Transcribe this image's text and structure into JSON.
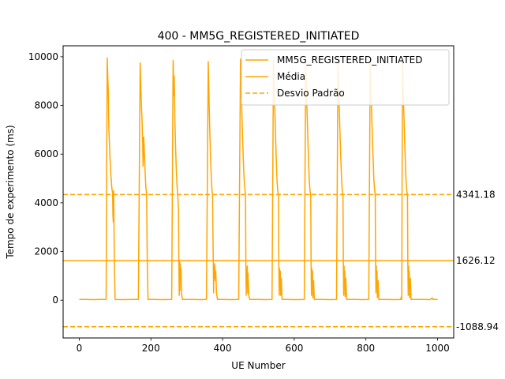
{
  "chart_data": {
    "type": "line",
    "title": "400 - MM5G_REGISTERED_INITIATED",
    "xlabel": "UE Number",
    "ylabel": "Tempo de experimento (ms)",
    "xlim": [
      -45,
      1045
    ],
    "ylim": [
      -1550,
      10450
    ],
    "xticks": [
      0,
      200,
      400,
      600,
      800,
      1000
    ],
    "yticks": [
      0,
      2000,
      4000,
      6000,
      8000,
      10000
    ],
    "xtick_labels": [
      "0",
      "200",
      "400",
      "600",
      "800",
      "1000"
    ],
    "ytick_labels": [
      "0",
      "2000",
      "4000",
      "6000",
      "8000",
      "10000"
    ],
    "grid": false,
    "legend_position": "top-right",
    "colors": {
      "series": "#FFA500",
      "axis": "#000000",
      "background": "#ffffff"
    },
    "series": [
      {
        "name": "MM5G_REGISTERED_INITIATED",
        "style": "solid",
        "points": [
          [
            0,
            30
          ],
          [
            20,
            30
          ],
          [
            40,
            25
          ],
          [
            60,
            30
          ],
          [
            75,
            30
          ],
          [
            78,
            9950
          ],
          [
            80,
            9000
          ],
          [
            81,
            8600
          ],
          [
            82,
            7500
          ],
          [
            83,
            6900
          ],
          [
            84,
            6550
          ],
          [
            86,
            5800
          ],
          [
            88,
            5200
          ],
          [
            91,
            4600
          ],
          [
            93,
            4400
          ],
          [
            94,
            3500
          ],
          [
            95,
            3200
          ],
          [
            96,
            4500
          ],
          [
            98,
            1600
          ],
          [
            100,
            30
          ],
          [
            120,
            25
          ],
          [
            150,
            30
          ],
          [
            165,
            30
          ],
          [
            170,
            9750
          ],
          [
            172,
            8700
          ],
          [
            174,
            7800
          ],
          [
            175,
            7500
          ],
          [
            177,
            6500
          ],
          [
            178,
            5500
          ],
          [
            180,
            6700
          ],
          [
            182,
            6000
          ],
          [
            184,
            5200
          ],
          [
            186,
            4600
          ],
          [
            188,
            4400
          ],
          [
            190,
            1300
          ],
          [
            192,
            30
          ],
          [
            210,
            30
          ],
          [
            230,
            25
          ],
          [
            258,
            30
          ],
          [
            262,
            9850
          ],
          [
            264,
            8400
          ],
          [
            265,
            9200
          ],
          [
            266,
            8300
          ],
          [
            267,
            7300
          ],
          [
            269,
            6200
          ],
          [
            271,
            5300
          ],
          [
            273,
            4700
          ],
          [
            275,
            4300
          ],
          [
            277,
            3700
          ],
          [
            278,
            1700
          ],
          [
            279,
            200
          ],
          [
            280,
            1600
          ],
          [
            281,
            400
          ],
          [
            282,
            1500
          ],
          [
            283,
            900
          ],
          [
            284,
            1300
          ],
          [
            286,
            200
          ],
          [
            288,
            30
          ],
          [
            310,
            30
          ],
          [
            340,
            25
          ],
          [
            355,
            30
          ],
          [
            360,
            9800
          ],
          [
            362,
            8400
          ],
          [
            364,
            7100
          ],
          [
            366,
            6100
          ],
          [
            368,
            5200
          ],
          [
            370,
            4600
          ],
          [
            372,
            4300
          ],
          [
            374,
            1600
          ],
          [
            375,
            300
          ],
          [
            376,
            1400
          ],
          [
            377,
            900
          ],
          [
            378,
            1500
          ],
          [
            380,
            800
          ],
          [
            381,
            1200
          ],
          [
            383,
            300
          ],
          [
            386,
            30
          ],
          [
            400,
            30
          ],
          [
            420,
            25
          ],
          [
            445,
            30
          ],
          [
            450,
            9900
          ],
          [
            452,
            8700
          ],
          [
            454,
            7600
          ],
          [
            456,
            6600
          ],
          [
            458,
            5700
          ],
          [
            460,
            5000
          ],
          [
            462,
            4600
          ],
          [
            464,
            4300
          ],
          [
            465,
            1500
          ],
          [
            466,
            200
          ],
          [
            467,
            1300
          ],
          [
            468,
            700
          ],
          [
            469,
            1400
          ],
          [
            470,
            300
          ],
          [
            471,
            1100
          ],
          [
            473,
            200
          ],
          [
            476,
            30
          ],
          [
            500,
            30
          ],
          [
            520,
            25
          ],
          [
            538,
            30
          ],
          [
            542,
            9850
          ],
          [
            544,
            8800
          ],
          [
            546,
            7700
          ],
          [
            548,
            6700
          ],
          [
            550,
            5700
          ],
          [
            552,
            4900
          ],
          [
            554,
            4500
          ],
          [
            556,
            4300
          ],
          [
            557,
            1400
          ],
          [
            558,
            200
          ],
          [
            559,
            1300
          ],
          [
            560,
            600
          ],
          [
            561,
            1200
          ],
          [
            562,
            200
          ],
          [
            564,
            900
          ],
          [
            566,
            30
          ],
          [
            580,
            30
          ],
          [
            600,
            25
          ],
          [
            628,
            30
          ],
          [
            632,
            9800
          ],
          [
            634,
            8600
          ],
          [
            636,
            7600
          ],
          [
            638,
            6600
          ],
          [
            640,
            5700
          ],
          [
            642,
            4900
          ],
          [
            644,
            4500
          ],
          [
            646,
            4300
          ],
          [
            647,
            1500
          ],
          [
            648,
            200
          ],
          [
            649,
            1300
          ],
          [
            650,
            700
          ],
          [
            651,
            1200
          ],
          [
            652,
            100
          ],
          [
            654,
            800
          ],
          [
            656,
            30
          ],
          [
            680,
            30
          ],
          [
            700,
            25
          ],
          [
            718,
            30
          ],
          [
            722,
            9800
          ],
          [
            724,
            8700
          ],
          [
            726,
            7700
          ],
          [
            728,
            6700
          ],
          [
            730,
            5800
          ],
          [
            732,
            5000
          ],
          [
            734,
            4500
          ],
          [
            736,
            4300
          ],
          [
            737,
            1500
          ],
          [
            738,
            200
          ],
          [
            739,
            1400
          ],
          [
            740,
            700
          ],
          [
            741,
            1200
          ],
          [
            742,
            150
          ],
          [
            744,
            900
          ],
          [
            746,
            30
          ],
          [
            770,
            30
          ],
          [
            790,
            25
          ],
          [
            808,
            30
          ],
          [
            812,
            9800
          ],
          [
            814,
            8700
          ],
          [
            816,
            7700
          ],
          [
            818,
            6700
          ],
          [
            820,
            5900
          ],
          [
            822,
            5000
          ],
          [
            824,
            4600
          ],
          [
            826,
            4300
          ],
          [
            827,
            1600
          ],
          [
            828,
            300
          ],
          [
            829,
            1400
          ],
          [
            830,
            500
          ],
          [
            831,
            1200
          ],
          [
            832,
            100
          ],
          [
            834,
            800
          ],
          [
            836,
            30
          ],
          [
            850,
            30
          ],
          [
            880,
            25
          ],
          [
            897,
            30
          ],
          [
            899,
            150
          ],
          [
            900,
            30
          ],
          [
            902,
            9800
          ],
          [
            904,
            8600
          ],
          [
            906,
            7600
          ],
          [
            908,
            6600
          ],
          [
            910,
            5700
          ],
          [
            912,
            4900
          ],
          [
            914,
            4500
          ],
          [
            916,
            4300
          ],
          [
            917,
            1500
          ],
          [
            918,
            200
          ],
          [
            919,
            1400
          ],
          [
            920,
            600
          ],
          [
            921,
            1200
          ],
          [
            922,
            100
          ],
          [
            924,
            900
          ],
          [
            926,
            30
          ],
          [
            960,
            30
          ],
          [
            980,
            25
          ],
          [
            985,
            100
          ],
          [
            987,
            30
          ],
          [
            1000,
            30
          ]
        ]
      },
      {
        "name": "Média",
        "style": "solid",
        "constant": 1626.12
      },
      {
        "name": "Desvio Padrão",
        "style": "dashed",
        "constants": [
          4341.18,
          -1088.94
        ]
      }
    ],
    "annotations": [
      {
        "value": 4341.18,
        "text": "4341.18"
      },
      {
        "value": 1626.12,
        "text": "1626.12"
      },
      {
        "value": -1088.94,
        "text": "-1088.94"
      }
    ]
  }
}
